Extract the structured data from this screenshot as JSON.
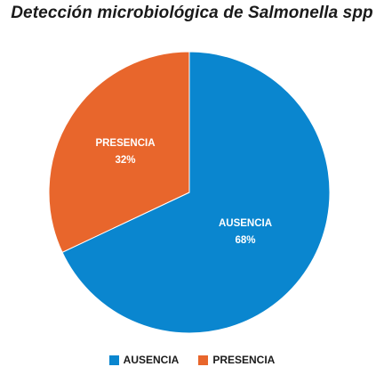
{
  "chart_data": {
    "type": "pie",
    "title": "Detección microbiológica de Salmonella spp",
    "slices": [
      {
        "label": "AUSENCIA",
        "value": 68,
        "value_label": "68%",
        "color": "#0a86cf"
      },
      {
        "label": "PRESENCIA",
        "value": 32,
        "value_label": "32%",
        "color": "#e8662c"
      }
    ],
    "legend": {
      "position": "bottom"
    }
  }
}
